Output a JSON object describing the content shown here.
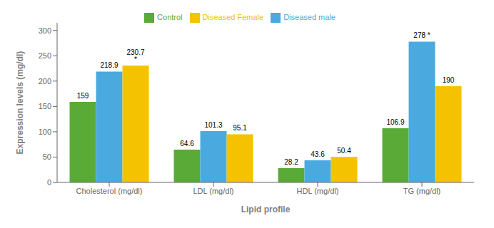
{
  "chart_data": {
    "type": "bar",
    "categories": [
      "Cholesterol (mg/dl)",
      "LDL (mg/dl)",
      "HDL (mg/dl)",
      "TG (mg/dl)"
    ],
    "series": [
      {
        "name": "Control",
        "color": "#5aaa38",
        "values": [
          159,
          64.6,
          28.2,
          106.9
        ],
        "value_labels": [
          "159",
          "64.6",
          "28.2",
          "106.9"
        ]
      },
      {
        "name": "Diseased male",
        "color": "#4aaae0",
        "values": [
          218.9,
          101.3,
          43.6,
          278
        ],
        "value_labels": [
          "218.9",
          "101.3",
          "43.6",
          "278 *"
        ]
      },
      {
        "name": "Diseased Female",
        "color": "#f5c200",
        "values": [
          230.7,
          95.1,
          50.4,
          190
        ],
        "value_labels": [
          "230.7 *",
          "95.1",
          "50.4",
          "190"
        ]
      }
    ],
    "xlabel": "Lipid profile",
    "ylabel": "Expression levels (mg/dl)",
    "ylim": [
      0,
      315
    ],
    "yticks": [
      0,
      50,
      100,
      150,
      200,
      250,
      300
    ],
    "grid": false,
    "legend": "upper center",
    "data_labels": true
  }
}
